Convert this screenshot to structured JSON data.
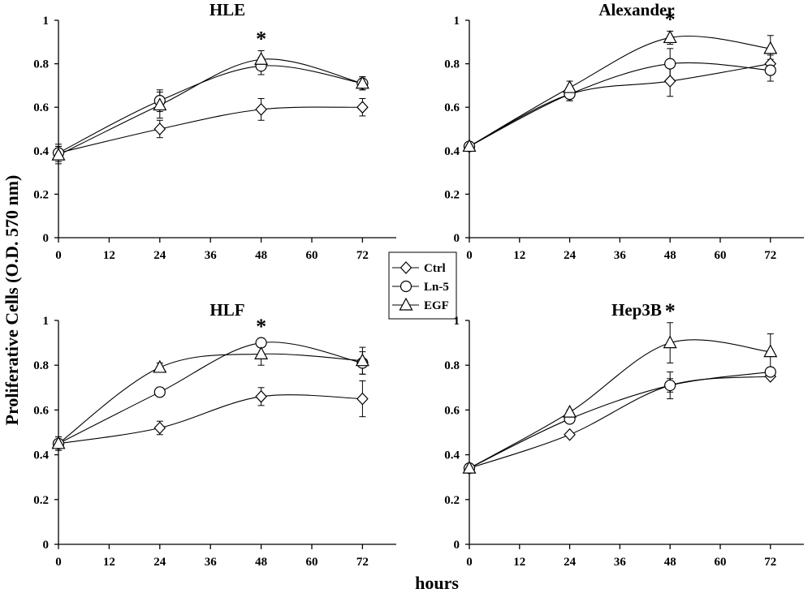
{
  "figure": {
    "ylabel": "Proliferative Cells (O.D. 570 nm)",
    "xlabel": "hours",
    "legend": [
      {
        "name": "Ctrl",
        "marker": "diamond"
      },
      {
        "name": "Ln-5",
        "marker": "circle"
      },
      {
        "name": "EGF",
        "marker": "triangle"
      }
    ]
  },
  "chart_data": [
    {
      "type": "line",
      "title": "HLE",
      "x": [
        0,
        24,
        48,
        72
      ],
      "xticks": [
        0,
        12,
        24,
        36,
        48,
        60,
        72
      ],
      "xlim": [
        0,
        80
      ],
      "yticks": [
        0,
        0.2,
        0.4,
        0.6,
        0.8,
        1
      ],
      "ylim": [
        0,
        1
      ],
      "significance": [
        {
          "x": 48,
          "label": "*"
        }
      ],
      "series": [
        {
          "name": "Ctrl",
          "marker": "diamond",
          "values": [
            0.39,
            0.5,
            0.59,
            0.6
          ],
          "errors": [
            0.03,
            0.04,
            0.05,
            0.04
          ]
        },
        {
          "name": "Ln-5",
          "marker": "circle",
          "values": [
            0.39,
            0.63,
            0.79,
            0.71
          ],
          "errors": [
            0.04,
            0.05,
            0.04,
            0.03
          ]
        },
        {
          "name": "EGF",
          "marker": "triangle",
          "values": [
            0.38,
            0.61,
            0.82,
            0.71
          ],
          "errors": [
            0.04,
            0.06,
            0.04,
            0.03
          ]
        }
      ]
    },
    {
      "type": "line",
      "title": "Alexander",
      "x": [
        0,
        24,
        48,
        72
      ],
      "xticks": [
        0,
        12,
        24,
        36,
        48,
        60,
        72
      ],
      "xlim": [
        0,
        80
      ],
      "yticks": [
        0,
        0.2,
        0.4,
        0.6,
        0.8,
        1
      ],
      "ylim": [
        0,
        1
      ],
      "significance": [
        {
          "x": 48,
          "label": "*"
        }
      ],
      "series": [
        {
          "name": "Ctrl",
          "marker": "diamond",
          "values": [
            0.42,
            0.66,
            0.72,
            0.8
          ],
          "errors": [
            0.02,
            0.03,
            0.07,
            0.04
          ]
        },
        {
          "name": "Ln-5",
          "marker": "circle",
          "values": [
            0.42,
            0.66,
            0.8,
            0.77
          ],
          "errors": [
            0.02,
            0.03,
            0.07,
            0.05
          ]
        },
        {
          "name": "EGF",
          "marker": "triangle",
          "values": [
            0.42,
            0.69,
            0.92,
            0.87
          ],
          "errors": [
            0.02,
            0.03,
            0.03,
            0.06
          ]
        }
      ]
    },
    {
      "type": "line",
      "title": "HLF",
      "x": [
        0,
        24,
        48,
        72
      ],
      "xticks": [
        0,
        12,
        24,
        36,
        48,
        60,
        72
      ],
      "xlim": [
        0,
        80
      ],
      "yticks": [
        0,
        0.2,
        0.4,
        0.6,
        0.8,
        1
      ],
      "ylim": [
        0,
        1
      ],
      "significance": [
        {
          "x": 48,
          "label": "*"
        }
      ],
      "series": [
        {
          "name": "Ctrl",
          "marker": "diamond",
          "values": [
            0.45,
            0.52,
            0.66,
            0.65
          ],
          "errors": [
            0.03,
            0.03,
            0.04,
            0.08
          ]
        },
        {
          "name": "Ln-5",
          "marker": "circle",
          "values": [
            0.45,
            0.68,
            0.9,
            0.81
          ],
          "errors": [
            0.03,
            0.02,
            0.02,
            0.05
          ]
        },
        {
          "name": "EGF",
          "marker": "triangle",
          "values": [
            0.45,
            0.79,
            0.85,
            0.82
          ],
          "errors": [
            0.03,
            0.02,
            0.05,
            0.06
          ]
        }
      ]
    },
    {
      "type": "line",
      "title": "Hep3B",
      "x": [
        0,
        24,
        48,
        72
      ],
      "xticks": [
        0,
        12,
        24,
        36,
        48,
        60,
        72
      ],
      "xlim": [
        0,
        80
      ],
      "yticks": [
        0,
        0.2,
        0.4,
        0.6,
        0.8,
        1
      ],
      "ylim": [
        0,
        1
      ],
      "significance": [
        {
          "x": 48,
          "label": "*"
        }
      ],
      "series": [
        {
          "name": "Ctrl",
          "marker": "diamond",
          "values": [
            0.34,
            0.49,
            0.71,
            0.75
          ],
          "errors": [
            0.01,
            0.01,
            0.03,
            0.01
          ]
        },
        {
          "name": "Ln-5",
          "marker": "circle",
          "values": [
            0.34,
            0.56,
            0.71,
            0.77
          ],
          "errors": [
            0.01,
            0.01,
            0.06,
            0.02
          ]
        },
        {
          "name": "EGF",
          "marker": "triangle",
          "values": [
            0.34,
            0.59,
            0.9,
            0.86
          ],
          "errors": [
            0.01,
            0.01,
            0.09,
            0.08
          ]
        }
      ]
    }
  ]
}
